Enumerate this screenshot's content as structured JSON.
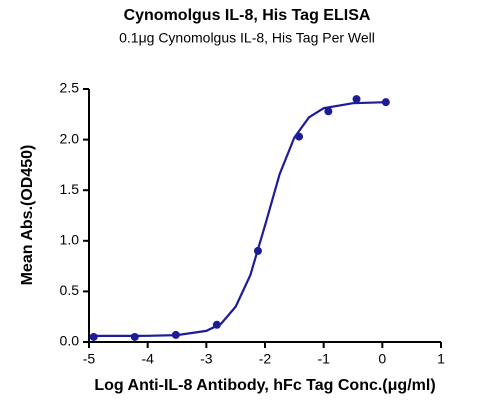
{
  "chart_data": {
    "type": "scatter",
    "title": "Cynomolgus IL-8, His Tag ELISA",
    "subtitle": "0.1μg Cynomolgus IL-8, His Tag Per Well",
    "x_label": "Log Anti-IL-8 Antibody, hFc Tag Conc.(μg/ml)",
    "y_label": "Mean Abs.(OD450)",
    "color": "#1c1c99",
    "x": [
      -4.92,
      -4.22,
      -3.52,
      -2.82,
      -2.12,
      -1.42,
      -0.92,
      -0.44,
      0.06
    ],
    "values": [
      0.05,
      0.05,
      0.07,
      0.17,
      0.9,
      2.03,
      2.28,
      2.4,
      2.37
    ],
    "curve": {
      "x": [
        -4.9,
        -4.5,
        -4.0,
        -3.5,
        -3.0,
        -2.75,
        -2.5,
        -2.25,
        -2.0,
        -1.75,
        -1.5,
        -1.25,
        -1.0,
        -0.5,
        0.05
      ],
      "values": [
        0.06,
        0.06,
        0.061,
        0.068,
        0.11,
        0.18,
        0.35,
        0.66,
        1.15,
        1.66,
        2.02,
        2.22,
        2.31,
        2.36,
        2.37
      ]
    },
    "xlim": [
      -5,
      1
    ],
    "xticks": [
      -5,
      -4,
      -3,
      -2,
      -1,
      0,
      1
    ],
    "ylim": [
      0,
      2.5
    ],
    "yticks": [
      {
        "value": 0,
        "label": "0.0"
      },
      0.5,
      {
        "value": 1,
        "label": "1.0"
      },
      1.5,
      {
        "value": 2,
        "label": "2.0"
      },
      2.5
    ]
  }
}
